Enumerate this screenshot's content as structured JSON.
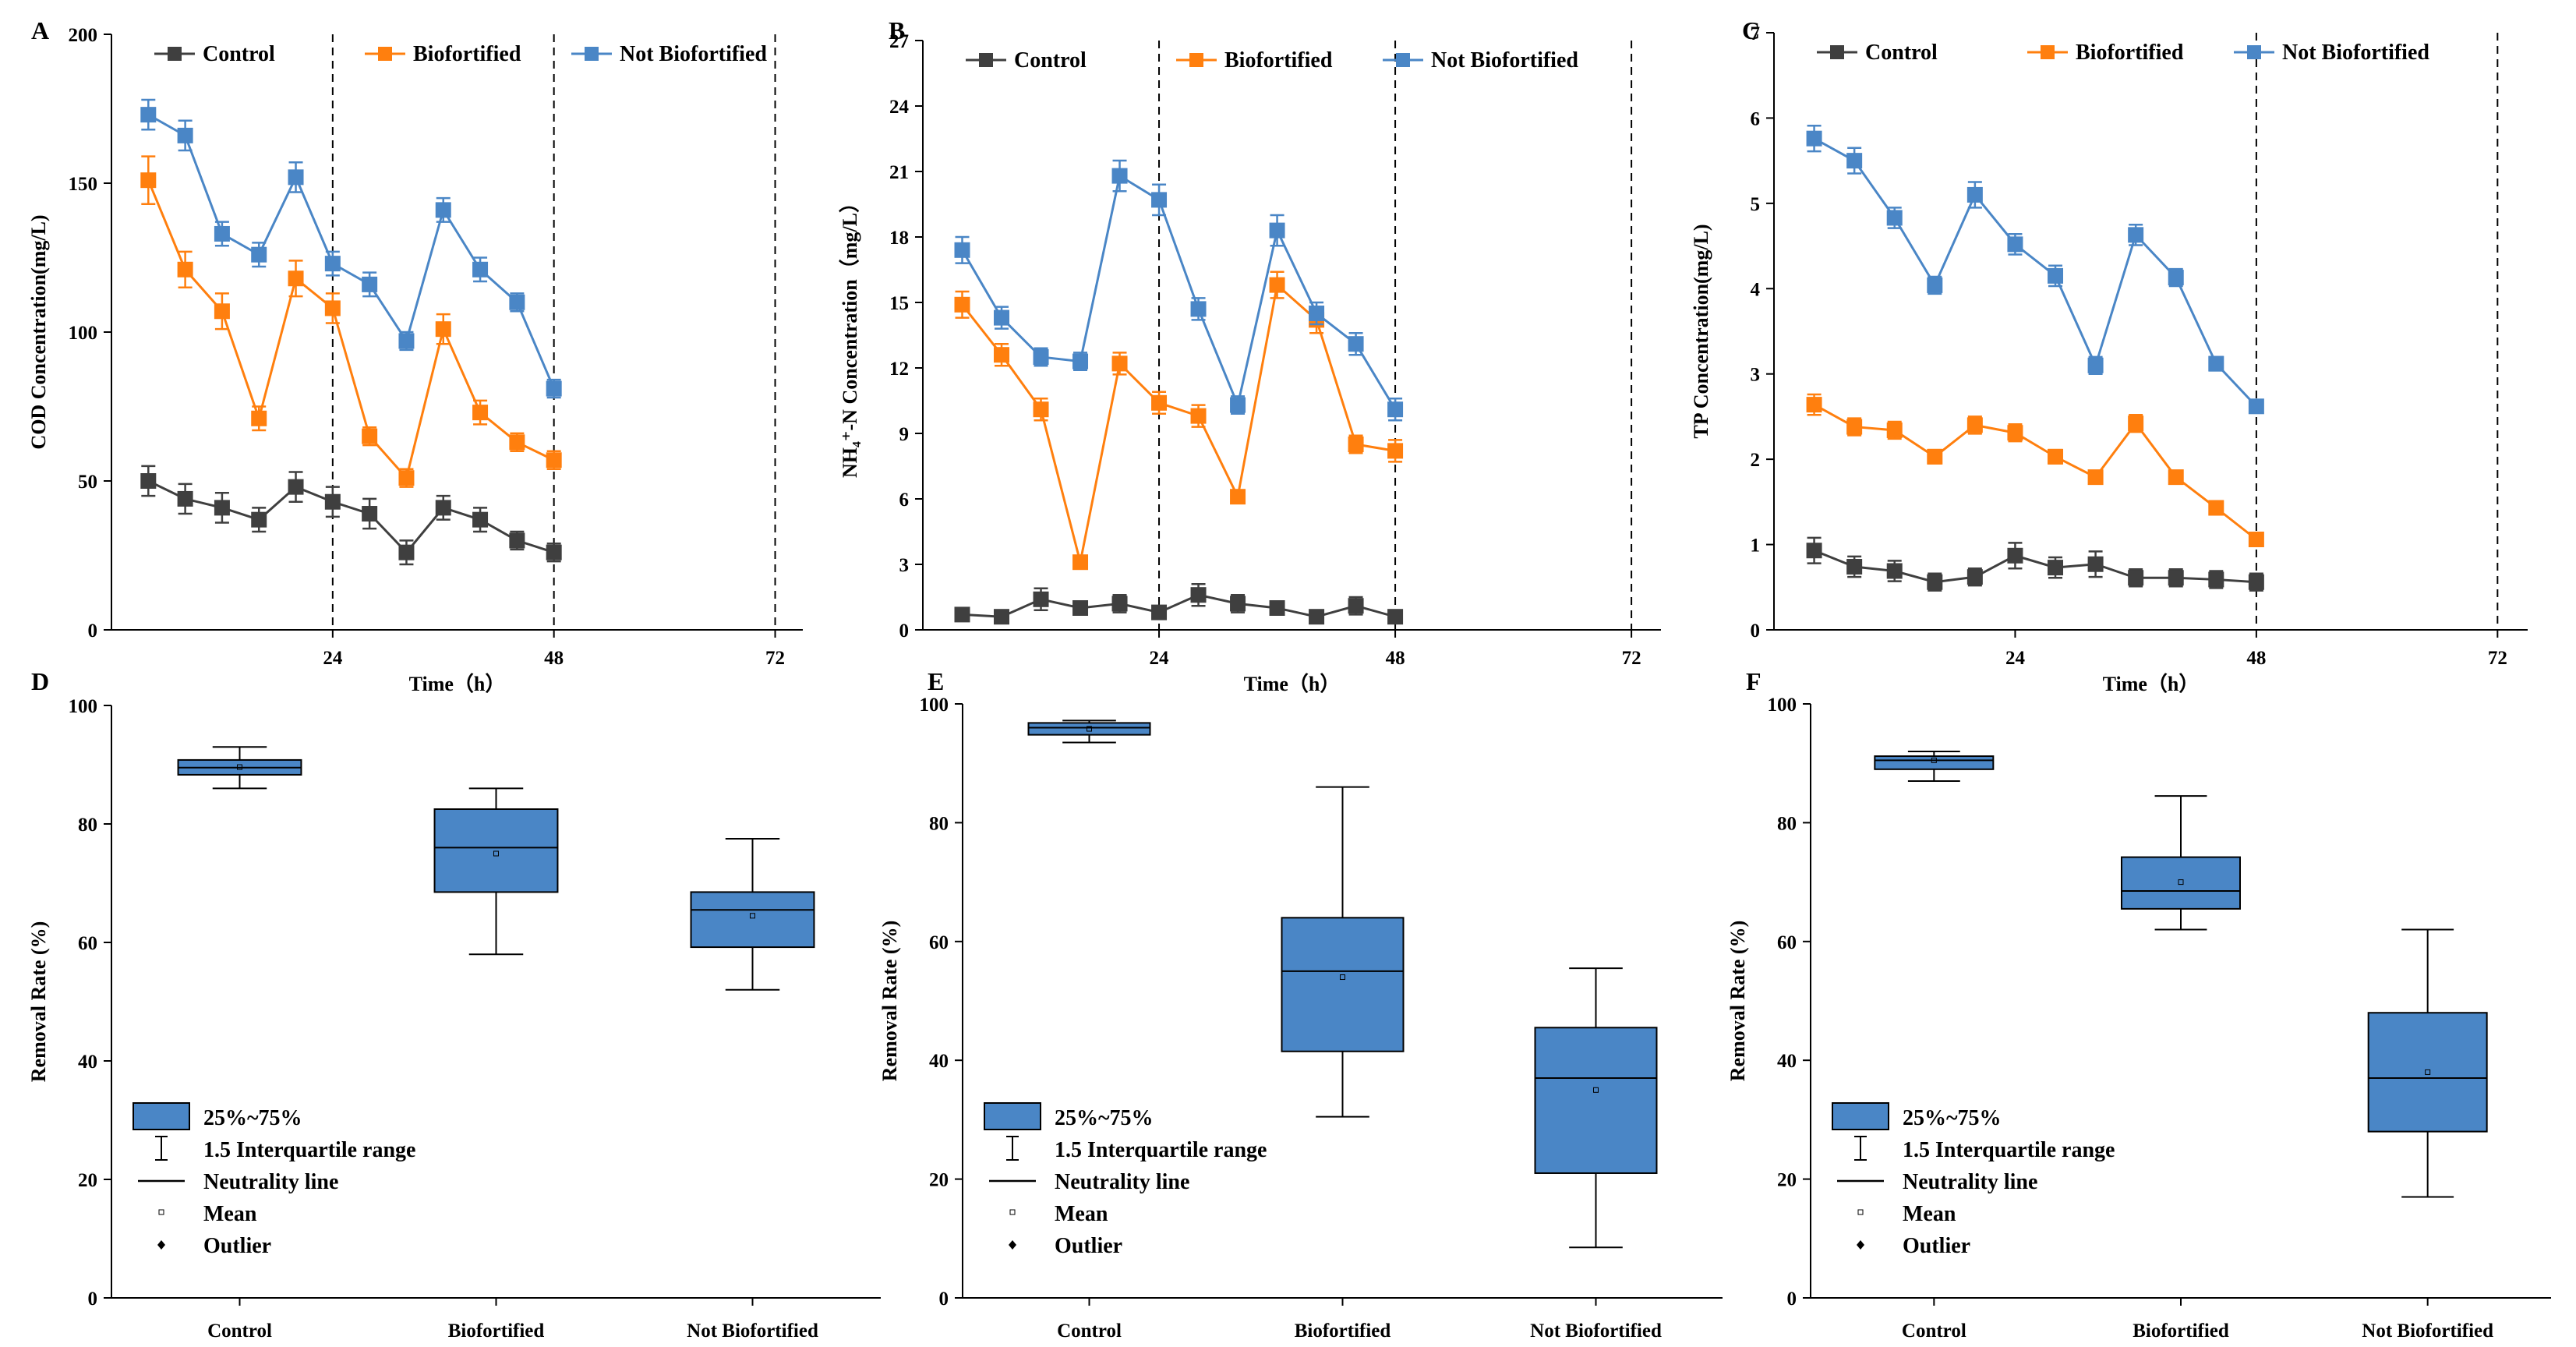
{
  "colors": {
    "Control": "#3f3f3f",
    "Biofortified": "#ff7f0e",
    "Not Biofortified": "#4a86c6",
    "box_fill": "#4a86c6"
  },
  "chart_data": [
    {
      "panel": "A",
      "type": "line",
      "ylabel": "COD Concentration(mg/L)",
      "xlabel": "Time（h）",
      "ylim": [
        0,
        200
      ],
      "yticks": [
        0,
        50,
        100,
        150,
        200
      ],
      "xlim": [
        0,
        75
      ],
      "xticks": [
        24,
        48,
        72
      ],
      "vlines": [
        24,
        48,
        72
      ],
      "legend_position": "top",
      "x": [
        4,
        8,
        12,
        16,
        20,
        24,
        28,
        32,
        36,
        40,
        44,
        48
      ],
      "series": [
        {
          "name": "Control",
          "values": [
            50,
            44,
            41,
            37,
            48,
            43,
            39,
            26,
            41,
            37,
            30,
            26
          ],
          "errors": [
            5,
            5,
            5,
            4,
            5,
            5,
            5,
            4,
            4,
            4,
            3,
            3
          ]
        },
        {
          "name": "Biofortified",
          "values": [
            151,
            121,
            107,
            71,
            118,
            108,
            65,
            51,
            101,
            73,
            63,
            57
          ],
          "errors": [
            8,
            6,
            6,
            4,
            6,
            5,
            3,
            3,
            5,
            4,
            3,
            3
          ]
        },
        {
          "name": "Not Biofortified",
          "values": [
            173,
            166,
            133,
            126,
            152,
            123,
            116,
            97,
            141,
            121,
            110,
            81
          ],
          "errors": [
            5,
            5,
            4,
            4,
            5,
            4,
            4,
            3,
            4,
            4,
            3,
            3
          ]
        }
      ]
    },
    {
      "panel": "B",
      "type": "line",
      "ylabel": "NH₄⁺-N Concentration（mg/L）",
      "xlabel": "Time（h）",
      "ylim": [
        0,
        27
      ],
      "yticks": [
        0,
        3,
        6,
        9,
        12,
        15,
        18,
        21,
        24,
        27
      ],
      "xlim": [
        0,
        75
      ],
      "xticks": [
        24,
        48,
        72
      ],
      "vlines": [
        24,
        48,
        72
      ],
      "legend_position": "top",
      "x": [
        4,
        8,
        12,
        16,
        20,
        24,
        28,
        32,
        36,
        40,
        44,
        48
      ],
      "series": [
        {
          "name": "Control",
          "values": [
            0.7,
            0.6,
            1.4,
            1.0,
            1.2,
            0.8,
            1.6,
            1.2,
            1.0,
            0.6,
            1.1,
            0.6
          ],
          "errors": [
            0.3,
            0.3,
            0.5,
            0.3,
            0.4,
            0.3,
            0.5,
            0.4,
            0.3,
            0.3,
            0.4,
            0.3
          ]
        },
        {
          "name": "Biofortified",
          "values": [
            14.9,
            12.6,
            10.1,
            3.1,
            12.2,
            10.4,
            9.8,
            6.1,
            15.8,
            14.2,
            8.5,
            8.2
          ],
          "errors": [
            0.6,
            0.5,
            0.5,
            0.3,
            0.5,
            0.5,
            0.5,
            0.3,
            0.6,
            0.6,
            0.4,
            0.5
          ]
        },
        {
          "name": "Not Biofortified",
          "values": [
            17.4,
            14.3,
            12.5,
            12.3,
            20.8,
            19.7,
            14.7,
            10.3,
            18.3,
            14.5,
            13.1,
            10.1
          ],
          "errors": [
            0.6,
            0.5,
            0.4,
            0.4,
            0.7,
            0.7,
            0.5,
            0.4,
            0.7,
            0.5,
            0.5,
            0.5
          ]
        }
      ]
    },
    {
      "panel": "C",
      "type": "line",
      "ylabel": "TP Concentration(mg/L)",
      "xlabel": "Time（h）",
      "ylim": [
        0,
        7
      ],
      "yticks": [
        0,
        1,
        2,
        3,
        4,
        5,
        6,
        7
      ],
      "xlim": [
        0,
        75
      ],
      "xticks": [
        24,
        48,
        72
      ],
      "vlines": [
        48,
        72
      ],
      "legend_position": "top",
      "x": [
        4,
        8,
        12,
        16,
        20,
        24,
        28,
        32,
        36,
        40,
        44,
        48
      ],
      "series": [
        {
          "name": "Control",
          "values": [
            0.93,
            0.74,
            0.69,
            0.56,
            0.62,
            0.87,
            0.73,
            0.77,
            0.61,
            0.61,
            0.59,
            0.56
          ],
          "errors": [
            0.15,
            0.12,
            0.12,
            0.1,
            0.1,
            0.15,
            0.12,
            0.15,
            0.1,
            0.1,
            0.1,
            0.1
          ]
        },
        {
          "name": "Biofortified",
          "values": [
            2.64,
            2.38,
            2.34,
            2.03,
            2.4,
            2.31,
            2.03,
            1.79,
            2.42,
            1.79,
            1.43,
            1.06
          ],
          "errors": [
            0.12,
            0.1,
            0.1,
            0.08,
            0.1,
            0.1,
            0.08,
            0.07,
            0.1,
            0.07,
            0.06,
            0.05
          ]
        },
        {
          "name": "Not Biofortified",
          "values": [
            5.76,
            5.5,
            4.83,
            4.04,
            5.1,
            4.52,
            4.15,
            3.1,
            4.63,
            4.13,
            3.12,
            2.62
          ],
          "errors": [
            0.15,
            0.15,
            0.12,
            0.1,
            0.15,
            0.12,
            0.12,
            0.1,
            0.12,
            0.1,
            0.08,
            0.07
          ]
        }
      ]
    },
    {
      "panel": "D",
      "type": "box",
      "ylabel": "Removal Rate (%)",
      "ylim": [
        0,
        100
      ],
      "yticks": [
        0,
        20,
        40,
        60,
        80,
        100
      ],
      "categories": [
        "Control",
        "Biofortified",
        "Not Biofortified"
      ],
      "boxes": [
        {
          "whisker_low": 86,
          "q1": 88.3,
          "median": 89.5,
          "q3": 90.8,
          "whisker_high": 93,
          "mean": 89.6
        },
        {
          "whisker_low": 58,
          "q1": 68.5,
          "median": 76,
          "q3": 82.5,
          "whisker_high": 86,
          "mean": 75
        },
        {
          "whisker_low": 52,
          "q1": 59.2,
          "median": 65.5,
          "q3": 68.5,
          "whisker_high": 77.5,
          "mean": 64.5
        }
      ],
      "legend": [
        "25%~75%",
        "1.5 Interquartile range",
        "Neutrality line",
        "Mean",
        "Outlier"
      ],
      "legend_position": "bottom-left"
    },
    {
      "panel": "E",
      "type": "box",
      "ylabel": "Removal Rate (%)",
      "ylim": [
        0,
        100
      ],
      "yticks": [
        0,
        20,
        40,
        60,
        80,
        100
      ],
      "categories": [
        "Control",
        "Biofortified",
        "Not Biofortified"
      ],
      "boxes": [
        {
          "whisker_low": 93.5,
          "q1": 94.8,
          "median": 96,
          "q3": 96.8,
          "whisker_high": 97.2,
          "mean": 95.8
        },
        {
          "whisker_low": 30.5,
          "q1": 41.5,
          "median": 55,
          "q3": 64,
          "whisker_high": 86,
          "mean": 54
        },
        {
          "whisker_low": 8.5,
          "q1": 21,
          "median": 37,
          "q3": 45.5,
          "whisker_high": 55.5,
          "mean": 35
        }
      ],
      "legend": [
        "25%~75%",
        "1.5 Interquartile range",
        "Neutrality line",
        "Mean",
        "Outlier"
      ],
      "legend_position": "bottom-left"
    },
    {
      "panel": "F",
      "type": "box",
      "ylabel": "Removal Rate (%)",
      "ylim": [
        0,
        100
      ],
      "yticks": [
        0,
        20,
        40,
        60,
        80,
        100
      ],
      "categories": [
        "Control",
        "Biofortified",
        "Not Biofortified"
      ],
      "boxes": [
        {
          "whisker_low": 87,
          "q1": 89,
          "median": 90.5,
          "q3": 91.2,
          "whisker_high": 92,
          "mean": 90.5
        },
        {
          "whisker_low": 62,
          "q1": 65.5,
          "median": 68.5,
          "q3": 74.2,
          "whisker_high": 84.5,
          "mean": 70
        },
        {
          "whisker_low": 17,
          "q1": 28,
          "median": 37,
          "q3": 48,
          "whisker_high": 62,
          "mean": 38
        }
      ],
      "legend": [
        "25%~75%",
        "1.5 Interquartile range",
        "Neutrality line",
        "Mean",
        "Outlier"
      ],
      "legend_position": "bottom-left"
    }
  ]
}
